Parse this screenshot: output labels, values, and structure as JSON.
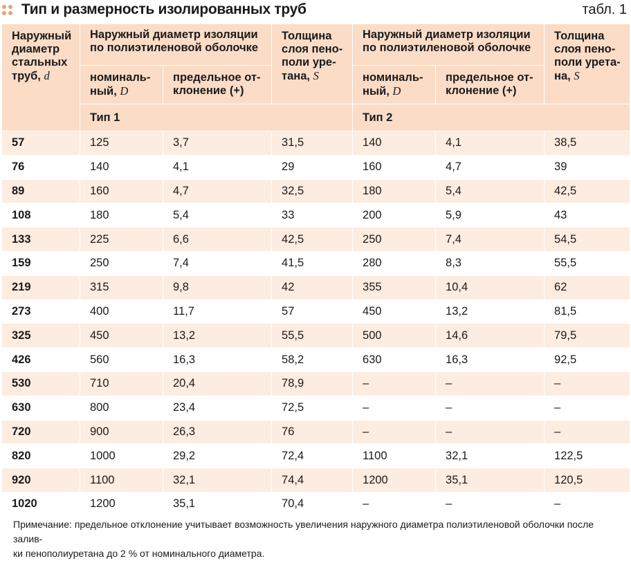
{
  "header": {
    "title": "Тип и размерность изолированных труб",
    "table_number": "табл. 1"
  },
  "table": {
    "head": {
      "col_pipe": [
        "Наружный",
        "диаметр",
        "стальных",
        "труб, "
      ],
      "col_pipe_symbol": "d",
      "group_diameter": [
        "Наружный диаметр изоляции",
        "по полиэтиленовой оболочке"
      ],
      "nominal": [
        "номиналь-",
        "ный, "
      ],
      "nominal_symbol": "D",
      "deviation": [
        "предельное от-",
        "клонение (+)"
      ],
      "thickness": [
        "Толщина",
        "слоя пено-",
        "поли уре-",
        "тана, "
      ],
      "thickness2": [
        "Толщина",
        "слоя пено-",
        "поли урета-",
        "на, "
      ],
      "thickness_symbol": "S",
      "type1": "Тип 1",
      "type2": "Тип 2"
    },
    "rows": [
      [
        "57",
        "125",
        "3,7",
        "31,5",
        "140",
        "4,1",
        "38,5"
      ],
      [
        "76",
        "140",
        "4,1",
        "29",
        "160",
        "4,7",
        "39"
      ],
      [
        "89",
        "160",
        "4,7",
        "32,5",
        "180",
        "5,4",
        "42,5"
      ],
      [
        "108",
        "180",
        "5,4",
        "33",
        "200",
        "5,9",
        "43"
      ],
      [
        "133",
        "225",
        "6,6",
        "42,5",
        "250",
        "7,4",
        "54,5"
      ],
      [
        "159",
        "250",
        "7,4",
        "41,5",
        "280",
        "8,3",
        "55,5"
      ],
      [
        "219",
        "315",
        "9,8",
        "42",
        "355",
        "10,4",
        "62"
      ],
      [
        "273",
        "400",
        "11,7",
        "57",
        "450",
        "13,2",
        "81,5"
      ],
      [
        "325",
        "450",
        "13,2",
        "55,5",
        "500",
        "14,6",
        "79,5"
      ],
      [
        "426",
        "560",
        "16,3",
        "58,2",
        "630",
        "16,3",
        "92,5"
      ],
      [
        "530",
        "710",
        "20,4",
        "78,9",
        "–",
        "–",
        "–"
      ],
      [
        "630",
        "800",
        "23,4",
        "72,5",
        "–",
        "–",
        "–"
      ],
      [
        "720",
        "900",
        "26,3",
        "76",
        "–",
        "–",
        "–"
      ],
      [
        "820",
        "1000",
        "29,2",
        "72,4",
        "1100",
        "32,1",
        "122,5"
      ],
      [
        "920",
        "1100",
        "32,1",
        "74,4",
        "1200",
        "35,1",
        "120,5"
      ],
      [
        "1020",
        "1200",
        "35,1",
        "70,4",
        "–",
        "–",
        "–"
      ]
    ]
  },
  "note": {
    "line1": "Примечание: предельное отклонение учитывает возможность увеличения наружного диаметра полиэтиленовой оболочки после залив-",
    "line2": "ки пенополиуретана до 2 % от номинального диаметра."
  },
  "colors": {
    "header_bg": "#fbdcc6",
    "stripe_bg": "#fdece0",
    "bullet": "#e8a37a"
  }
}
